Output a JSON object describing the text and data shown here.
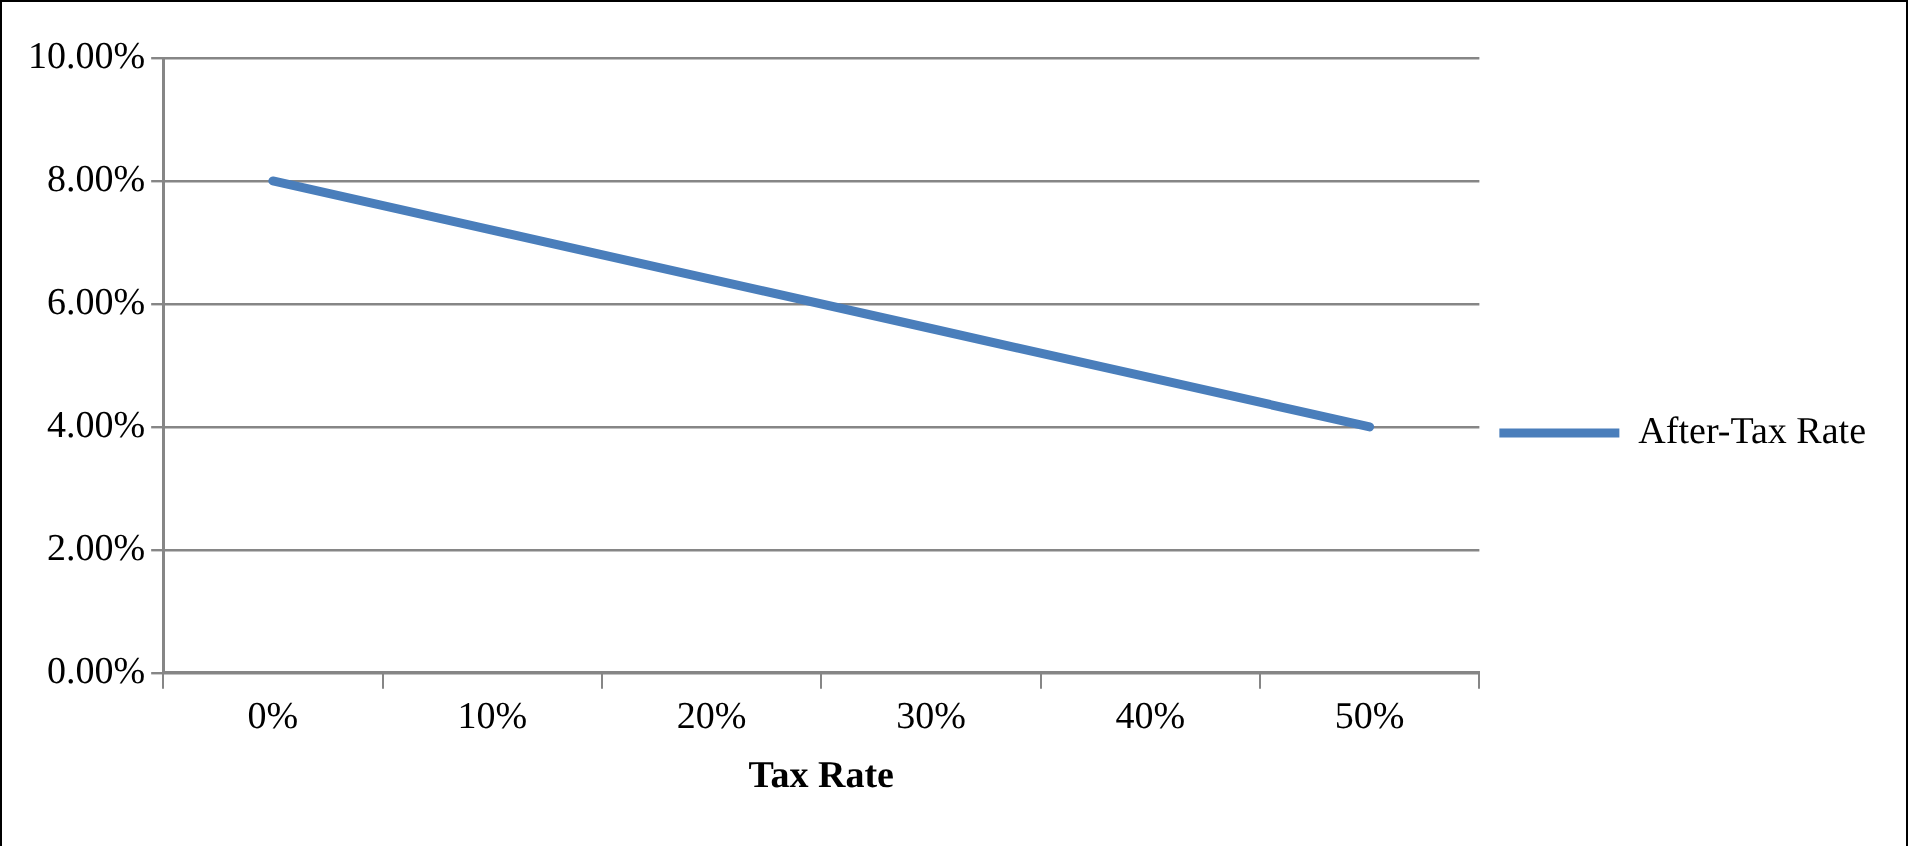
{
  "chart_data": {
    "type": "line",
    "xlabel": "Tax Rate",
    "categories": [
      "0%",
      "10%",
      "20%",
      "30%",
      "40%",
      "50%"
    ],
    "series": [
      {
        "name": "After-Tax Rate",
        "color": "#4a7ebb",
        "values": [
          8,
          7.2,
          6.4,
          5.6,
          4.8,
          4
        ]
      }
    ],
    "ylim": [
      0,
      10
    ],
    "yticks": [
      {
        "value": 0,
        "label": "0.00%"
      },
      {
        "value": 2,
        "label": "2.00%"
      },
      {
        "value": 4,
        "label": "4.00%"
      },
      {
        "value": 6,
        "label": "6.00%"
      },
      {
        "value": 8,
        "label": "8.00%"
      },
      {
        "value": 10,
        "label": "10.00%"
      }
    ],
    "grid": "y",
    "legend": "right",
    "marker": "none",
    "line_style": "solid"
  }
}
